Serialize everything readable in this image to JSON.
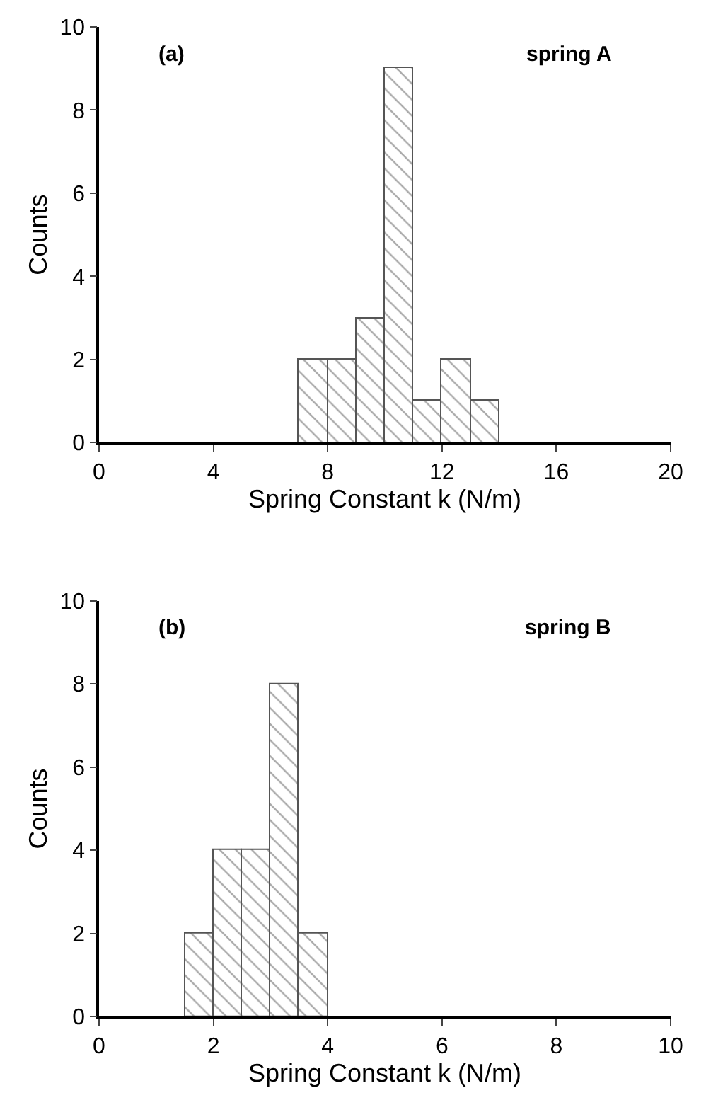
{
  "chart_data": [
    {
      "type": "histogram",
      "xlabel": "Spring Constant k (N/m)",
      "ylabel": "Counts",
      "annotations": [
        "(a)",
        "spring A"
      ],
      "bins": [
        7,
        8,
        9,
        10,
        11,
        12,
        13,
        14
      ],
      "values": [
        2,
        2,
        3,
        9,
        1,
        2,
        1
      ],
      "color": "#555555",
      "xlim": [
        0,
        20
      ],
      "xticks": [
        0,
        4,
        8,
        12,
        16,
        20
      ],
      "ylim": [
        0,
        10
      ],
      "yticks": [
        0,
        2,
        4,
        6,
        8,
        10
      ]
    },
    {
      "type": "histogram",
      "xlabel": "Spring Constant k (N/m)",
      "ylabel": "Counts",
      "annotations": [
        "(b)",
        "spring B"
      ],
      "bins": [
        1.5,
        2,
        2.5,
        3,
        3.5,
        4
      ],
      "values": [
        2,
        4,
        4,
        8,
        2
      ],
      "color": "#555555",
      "xlim": [
        0,
        10
      ],
      "xticks": [
        0,
        2,
        4,
        6,
        8,
        10
      ],
      "ylim": [
        0,
        10
      ],
      "yticks": [
        0,
        2,
        4,
        6,
        8,
        10
      ]
    }
  ]
}
